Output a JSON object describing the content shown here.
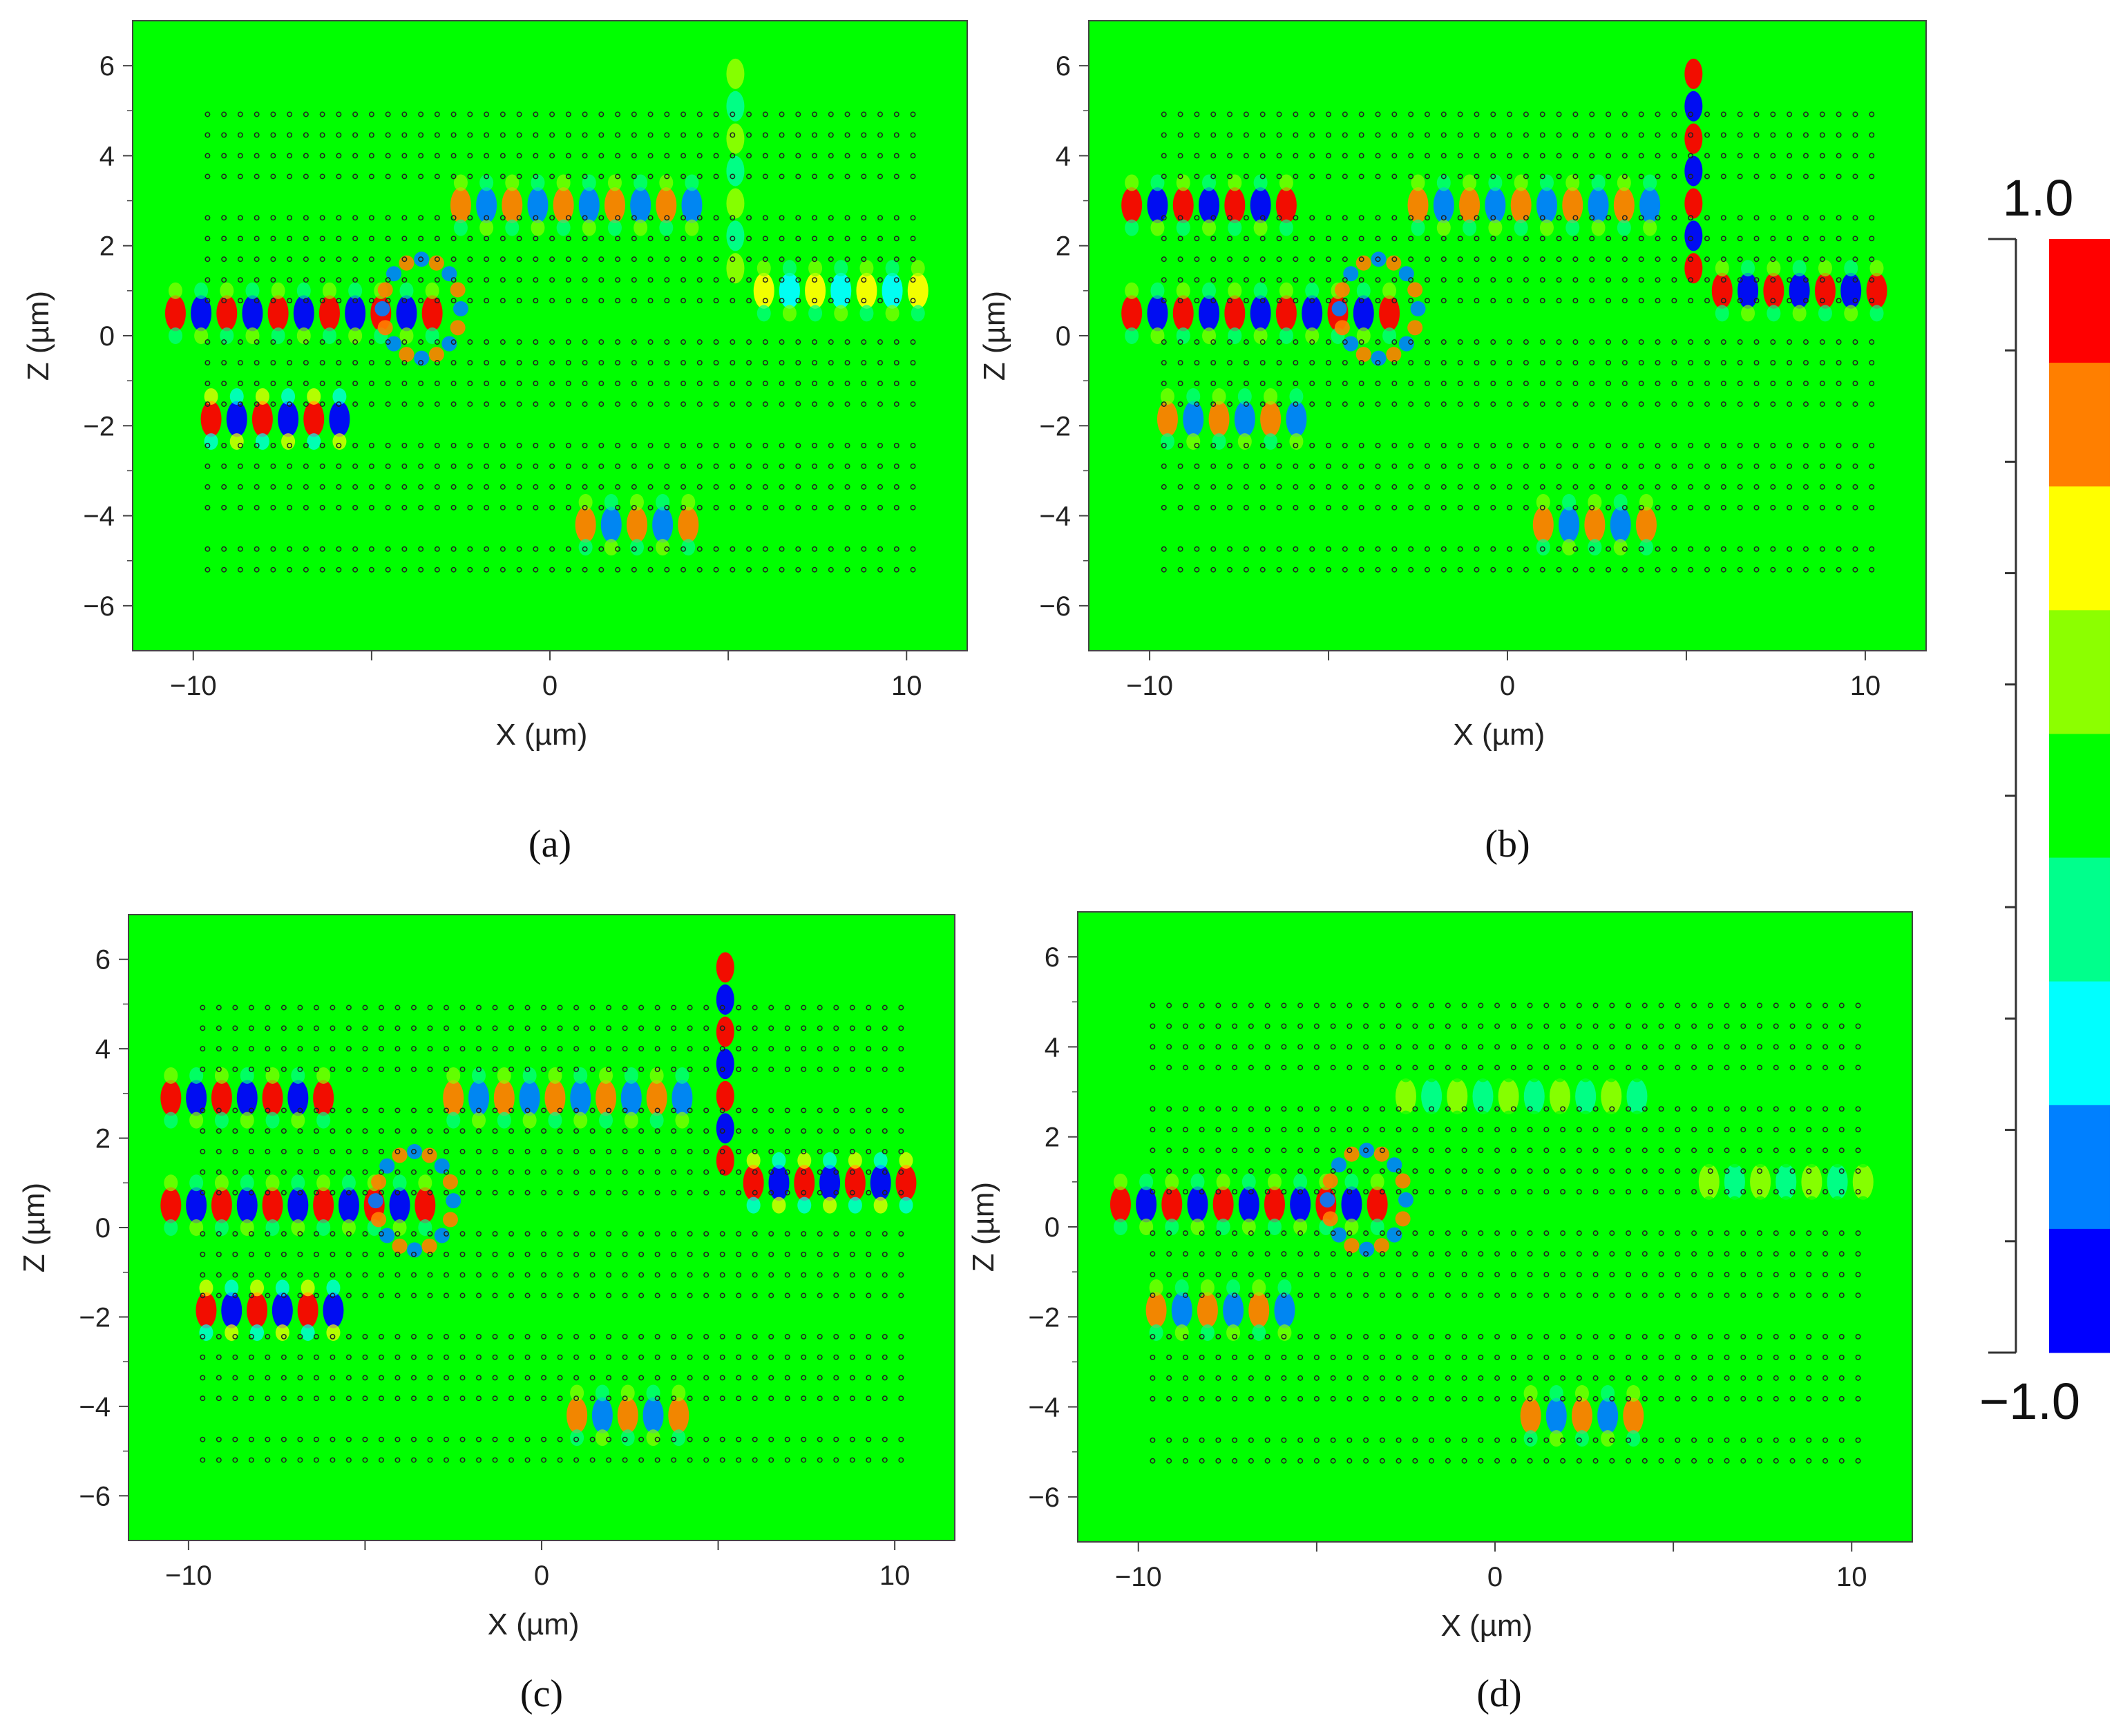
{
  "chart_data": [
    {
      "type": "heatmap",
      "panel_label": "(a)",
      "xlabel": "X (µm)",
      "ylabel": "Z (µm)",
      "xlim": [
        -11.7,
        11.7
      ],
      "ylim": [
        -7,
        7
      ],
      "xticks": [
        -10,
        0,
        10
      ],
      "xtick_labels": [
        "−10",
        "0",
        "10"
      ],
      "yticks": [
        -6,
        -4,
        -2,
        0,
        2,
        4,
        6
      ],
      "ytick_labels": [
        "−6",
        "−4",
        "−2",
        "0",
        "2",
        "4",
        "6"
      ],
      "waveguides": [
        {
          "x": [
            -10.5,
            -3
          ],
          "z": 0.5,
          "amp": 0.8
        },
        {
          "x": [
            -9.5,
            -5.5
          ],
          "z": -1.85,
          "amp": 1.0
        },
        {
          "x": [
            -2.5,
            4.5
          ],
          "z": 2.9,
          "amp": 0.6
        },
        {
          "x": [
            6,
            10.5
          ],
          "z": 1.0,
          "amp": 0.5
        },
        {
          "x": [
            1,
            4.5
          ],
          "z": -4.2,
          "amp": 0.6
        },
        {
          "x": [
            5.2,
            5.2
          ],
          "z_range": [
            1.5,
            6
          ],
          "amp": 0.3
        }
      ]
    },
    {
      "type": "heatmap",
      "panel_label": "(b)",
      "xlabel": "X (µm)",
      "ylabel": "Z (µm)",
      "xlim": [
        -11.7,
        11.7
      ],
      "ylim": [
        -7,
        7
      ],
      "xticks": [
        -10,
        0,
        10
      ],
      "xtick_labels": [
        "−10",
        "0",
        "10"
      ],
      "yticks": [
        -6,
        -4,
        -2,
        0,
        2,
        4,
        6
      ],
      "ytick_labels": [
        "−6",
        "−4",
        "−2",
        "0",
        "2",
        "4",
        "6"
      ],
      "waveguides": [
        {
          "x": [
            -10.5,
            -3
          ],
          "z": 0.5,
          "amp": 0.8
        },
        {
          "x": [
            -10.5,
            -5.5
          ],
          "z": 2.9,
          "amp": 0.9
        },
        {
          "x": [
            -9.5,
            -5.5
          ],
          "z": -1.85,
          "amp": 0.7
        },
        {
          "x": [
            -2.5,
            4.5
          ],
          "z": 2.9,
          "amp": 0.6
        },
        {
          "x": [
            6,
            10.5
          ],
          "z": 1.0,
          "amp": 0.9
        },
        {
          "x": [
            1,
            4.5
          ],
          "z": -4.2,
          "amp": 0.6
        },
        {
          "x": [
            5.2,
            5.2
          ],
          "z_range": [
            1.5,
            6
          ],
          "amp": 1.0
        }
      ]
    },
    {
      "type": "heatmap",
      "panel_label": "(c)",
      "xlabel": "X (µm)",
      "ylabel": "Z (µm)",
      "xlim": [
        -11.7,
        11.7
      ],
      "ylim": [
        -7,
        7
      ],
      "xticks": [
        -10,
        0,
        10
      ],
      "xtick_labels": [
        "−10",
        "0",
        "10"
      ],
      "yticks": [
        -6,
        -4,
        -2,
        0,
        2,
        4,
        6
      ],
      "ytick_labels": [
        "−6",
        "−4",
        "−2",
        "0",
        "2",
        "4",
        "6"
      ],
      "waveguides": [
        {
          "x": [
            -10.5,
            -3
          ],
          "z": 0.5,
          "amp": 0.8
        },
        {
          "x": [
            -10.5,
            -5.5
          ],
          "z": 2.9,
          "amp": 0.8
        },
        {
          "x": [
            -9.5,
            -5.5
          ],
          "z": -1.85,
          "amp": 1.0
        },
        {
          "x": [
            -2.5,
            4.5
          ],
          "z": 2.9,
          "amp": 0.6
        },
        {
          "x": [
            6,
            10.5
          ],
          "z": 1.0,
          "amp": 1.0
        },
        {
          "x": [
            1,
            4.5
          ],
          "z": -4.2,
          "amp": 0.6
        },
        {
          "x": [
            5.2,
            5.2
          ],
          "z_range": [
            1.5,
            6
          ],
          "amp": 1.0
        }
      ]
    },
    {
      "type": "heatmap",
      "panel_label": "(d)",
      "xlabel": "X (µm)",
      "ylabel": "Z (µm)",
      "xlim": [
        -11.7,
        11.7
      ],
      "ylim": [
        -7,
        7
      ],
      "xticks": [
        -10,
        0,
        10
      ],
      "xtick_labels": [
        "−10",
        "0",
        "10"
      ],
      "yticks": [
        -6,
        -4,
        -2,
        0,
        2,
        4,
        6
      ],
      "ytick_labels": [
        "−6",
        "−4",
        "−2",
        "0",
        "2",
        "4",
        "6"
      ],
      "waveguides": [
        {
          "x": [
            -10.5,
            -3
          ],
          "z": 0.5,
          "amp": 0.8
        },
        {
          "x": [
            -9.5,
            -5.5
          ],
          "z": -1.85,
          "amp": 0.6
        },
        {
          "x": [
            -2.5,
            4.5
          ],
          "z": 2.9,
          "amp": 0.2
        },
        {
          "x": [
            6,
            10.5
          ],
          "z": 1.0,
          "amp": 0.3
        },
        {
          "x": [
            1,
            4.5
          ],
          "z": -4.2,
          "amp": 0.7
        },
        {
          "x": [
            5.2,
            5.2
          ],
          "z_range": [
            1.5,
            6
          ],
          "amp": 0.1
        }
      ]
    }
  ],
  "colorbar": {
    "max_label": "1.0",
    "min_label": "−1.0",
    "range": [
      -1.0,
      1.0
    ],
    "colors_top_to_bottom": [
      "#ff0000",
      "#ff7f00",
      "#ffff00",
      "#8cff00",
      "#00ff00",
      "#00ff8c",
      "#00ffff",
      "#0080ff",
      "#0000ff"
    ]
  },
  "colors": {
    "background_field": "#00ff00",
    "hole": "#222222",
    "axis": "#444444"
  }
}
